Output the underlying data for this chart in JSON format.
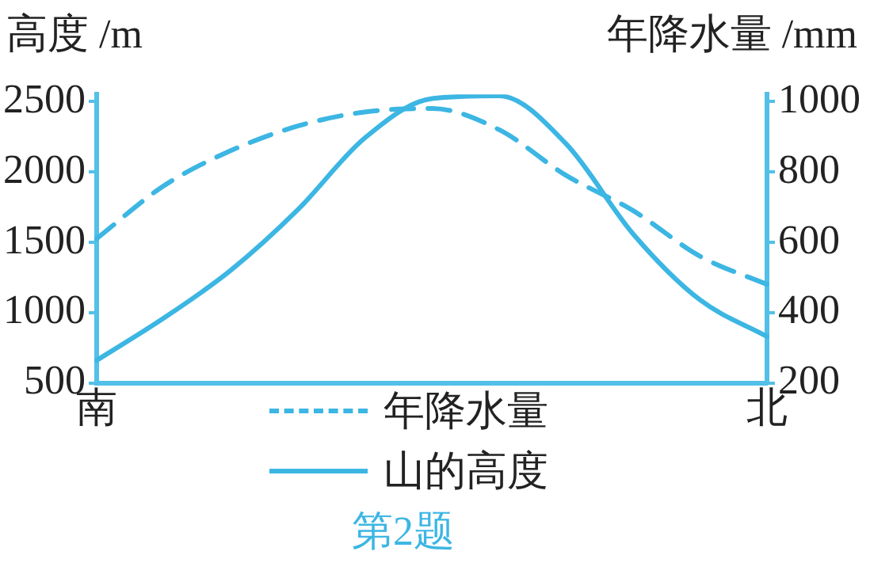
{
  "chart_data": {
    "type": "line",
    "ylabel": "高度 /m",
    "y2label": "年降水量 /mm",
    "categories": [
      "南",
      null,
      null,
      null,
      null,
      null,
      null,
      null,
      null,
      null,
      "北"
    ],
    "series": [
      {
        "name": "年降水量",
        "color": "#3cb6e3",
        "axis": "y2",
        "line_style": "dashed",
        "values": [
          610,
          760,
          860,
          930,
          970,
          980,
          920,
          790,
          690,
          560,
          480
        ]
      },
      {
        "name": "山的高度",
        "color": "#3cb6e3",
        "axis": "y",
        "line_style": "solid",
        "values": [
          660,
          960,
          1300,
          1730,
          2240,
          2520,
          2540,
          2200,
          1560,
          1090,
          830
        ]
      }
    ],
    "ylim": [
      500,
      2550
    ],
    "yticks": [
      500,
      1000,
      1500,
      2000,
      2500
    ],
    "y2lim": [
      200,
      1020
    ],
    "y2ticks": [
      200,
      400,
      600,
      800,
      1000
    ],
    "grid": false,
    "legend": "bottom",
    "marker": "none",
    "annotations": [
      "第2题"
    ]
  }
}
